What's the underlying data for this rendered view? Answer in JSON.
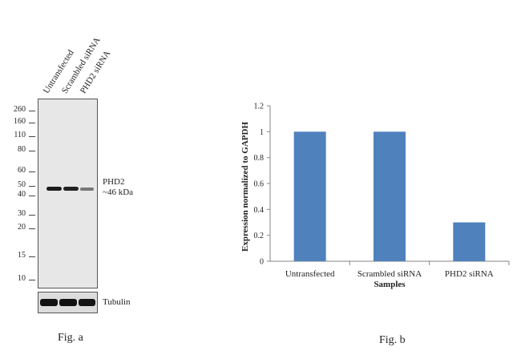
{
  "figure_a": {
    "lanes": [
      "Untransfected",
      "Scrambled siRNA",
      "PHD2 siRNA"
    ],
    "markers": [
      "260",
      "160",
      "110",
      "80",
      "60",
      "50",
      "40",
      "30",
      "20",
      "15",
      "10"
    ],
    "protein_name": "PHD2",
    "protein_size": "~46 kDa",
    "loading_control": "Tubulin",
    "band_intensity": [
      1.0,
      1.0,
      0.3
    ],
    "caption": "Fig. a"
  },
  "figure_b": {
    "caption": "Fig. b"
  },
  "chart_data": {
    "type": "bar",
    "categories": [
      "Untransfected",
      "Scrambled siRNA",
      "PHD2 siRNA"
    ],
    "values": [
      1.0,
      1.0,
      0.3
    ],
    "xlabel": "Samples",
    "ylabel": "Expression normalized to GAPDH",
    "ylim": [
      0,
      1.2
    ],
    "yticks": [
      "0",
      "0.2",
      "0.4",
      "0.6",
      "0.8",
      "1",
      "1.2"
    ],
    "bar_color": "#4f81bd",
    "grid": false,
    "legend": "none"
  }
}
